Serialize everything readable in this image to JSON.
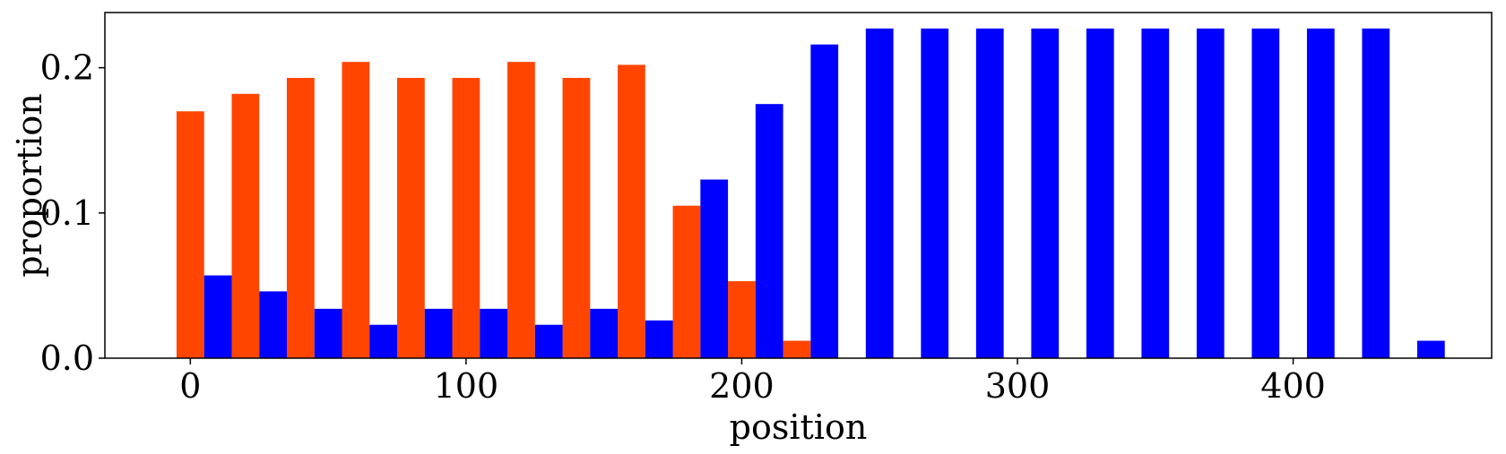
{
  "chart_data": {
    "type": "bar",
    "xlabel": "position",
    "ylabel": "proportion",
    "xlim": [
      -31,
      472
    ],
    "ylim": [
      0,
      0.238
    ],
    "xticks": [
      0,
      100,
      200,
      300,
      400
    ],
    "xtick_labels": [
      "0",
      "100",
      "200",
      "300",
      "400"
    ],
    "yticks": [
      0,
      0.1,
      0.2
    ],
    "ytick_labels": [
      "0.0",
      "0.1",
      "0.2"
    ],
    "bar_width": 10,
    "grid": false,
    "legend": "none",
    "series": [
      {
        "color": "#ff4500",
        "x": [
          0,
          20,
          40,
          60,
          80,
          100,
          120,
          140,
          160,
          180,
          200,
          220
        ],
        "values": [
          0.17,
          0.182,
          0.193,
          0.204,
          0.193,
          0.193,
          0.204,
          0.193,
          0.202,
          0.105,
          0.053,
          0.012
        ]
      },
      {
        "color": "#0000ff",
        "x": [
          10,
          30,
          50,
          70,
          90,
          110,
          130,
          150,
          170,
          190,
          210,
          230,
          250,
          270,
          290,
          310,
          330,
          350,
          370,
          390,
          410,
          430,
          450
        ],
        "values": [
          0.057,
          0.046,
          0.034,
          0.023,
          0.034,
          0.034,
          0.023,
          0.034,
          0.026,
          0.123,
          0.175,
          0.216,
          0.227,
          0.227,
          0.227,
          0.227,
          0.227,
          0.227,
          0.227,
          0.227,
          0.227,
          0.227,
          0.012
        ]
      }
    ]
  }
}
